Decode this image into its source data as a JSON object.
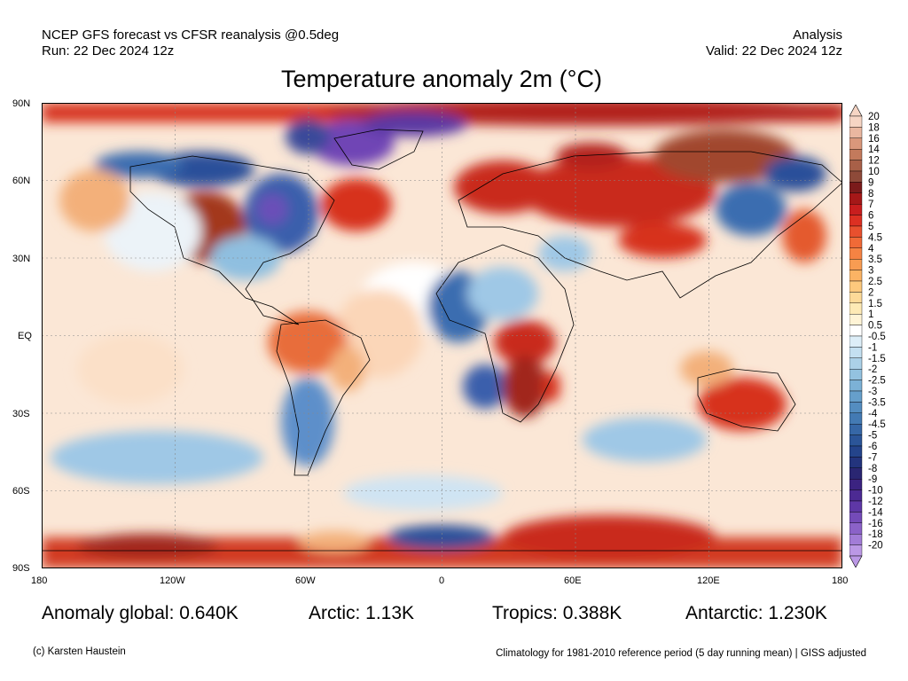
{
  "header": {
    "left_line1": "NCEP GFS forecast vs CFSR reanalysis @0.5deg",
    "left_line2": "Run: 22 Dec 2024 12z",
    "right_line1": "Analysis",
    "right_line2": "Valid: 22 Dec 2024 12z"
  },
  "title": "Temperature anomaly 2m (°C)",
  "axes": {
    "lat_labels": [
      "90N",
      "60N",
      "30N",
      "EQ",
      "30S",
      "60S",
      "90S"
    ],
    "lon_labels": [
      "180",
      "120W",
      "60W",
      "0",
      "60E",
      "120E",
      "180"
    ]
  },
  "colorbar": {
    "labels": [
      "20",
      "18",
      "16",
      "14",
      "12",
      "10",
      "9",
      "8",
      "7",
      "6",
      "5",
      "4.5",
      "4",
      "3.5",
      "3",
      "2.5",
      "2",
      "1.5",
      "1",
      "0.5",
      "-0.5",
      "-1",
      "-1.5",
      "-2",
      "-2.5",
      "-3",
      "-3.5",
      "-4",
      "-4.5",
      "-5",
      "-6",
      "-7",
      "-8",
      "-9",
      "-10",
      "-12",
      "-14",
      "-16",
      "-18",
      "-20"
    ],
    "colors": [
      "#f6d5c4",
      "#eab7a0",
      "#d9977b",
      "#c37a5c",
      "#a86048",
      "#8e4a39",
      "#7b1b1b",
      "#a51818",
      "#c81e1e",
      "#dc3022",
      "#e8502e",
      "#f06a37",
      "#f58343",
      "#f89c52",
      "#fbb364",
      "#fdc97d",
      "#fdda98",
      "#feeab5",
      "#fff4d6",
      "#ffffff",
      "#ddeef8",
      "#c4e0f1",
      "#abd1e8",
      "#93c2e0",
      "#7cb1d6",
      "#669fcb",
      "#548dc0",
      "#437ab3",
      "#3667a6",
      "#2b5598",
      "#24448b",
      "#23347d",
      "#2a2672",
      "#3b2381",
      "#4c2a93",
      "#5e37a6",
      "#744bb8",
      "#8b62c8",
      "#a27cd7",
      "#bb98e5"
    ]
  },
  "stats": {
    "global": "Anomaly global: 0.640K",
    "arctic": "Arctic: 1.13K",
    "tropics": "Tropics: 0.388K",
    "antarctic": "Antarctic: 1.230K"
  },
  "footer": {
    "left": "(c) Karsten Haustein",
    "right": "Climatology for 1981-2010 reference period (5 day running mean) | GISS adjusted"
  }
}
